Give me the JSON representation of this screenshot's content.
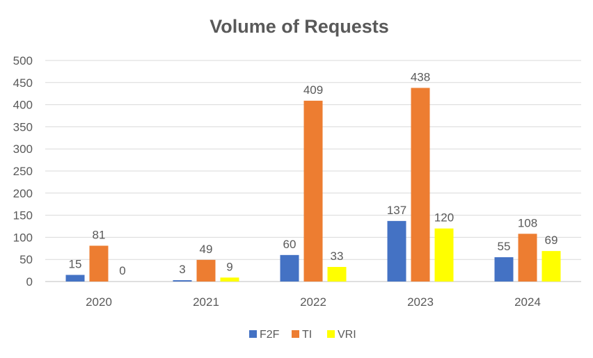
{
  "chart_data": {
    "type": "bar",
    "title": "Volume of Requests",
    "categories": [
      "2020",
      "2021",
      "2022",
      "2023",
      "2024"
    ],
    "series": [
      {
        "name": "F2F",
        "color": "#4472C4",
        "values": [
          15,
          3,
          60,
          137,
          55
        ]
      },
      {
        "name": "TI",
        "color": "#ED7D31",
        "values": [
          81,
          49,
          409,
          438,
          108
        ]
      },
      {
        "name": "VRI",
        "color": "#FFFF00",
        "values": [
          0,
          9,
          33,
          120,
          69
        ]
      }
    ],
    "xlabel": "",
    "ylabel": "",
    "ylim": [
      0,
      500
    ],
    "yticks": [
      0,
      50,
      100,
      150,
      200,
      250,
      300,
      350,
      400,
      450,
      500
    ],
    "grid": true,
    "data_labels": true,
    "legend": "bottom"
  }
}
